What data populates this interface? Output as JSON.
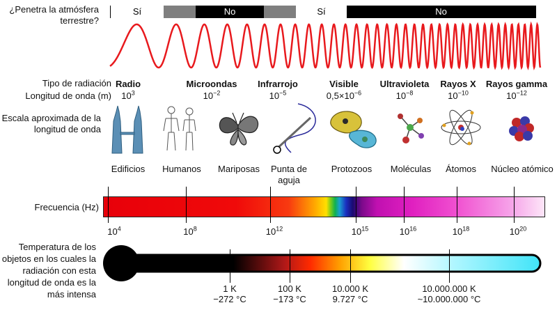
{
  "penetration": {
    "question": "¿Penetra la atmósfera terrestre?",
    "segments": [
      {
        "label": "Sí",
        "color": "#ffffff"
      },
      {
        "label": "",
        "color": "#7f7f7f"
      },
      {
        "label": "No",
        "color": "#000000"
      },
      {
        "label": "",
        "color": "#7f7f7f"
      },
      {
        "label": "Sí",
        "color": "#ffffff"
      },
      {
        "label": "No",
        "color": "#000000"
      }
    ]
  },
  "row_labels": {
    "type": "Tipo de radiación",
    "wavelength": "Longitud de onda (m)",
    "scale": "Escala aproximada de la longitud de onda",
    "frequency": "Frecuencia (Hz)",
    "temperature": "Temperatura de los objetos en los cuales la radiación con esta longitud de onda es la más intensa"
  },
  "columns": [
    {
      "name": "Radio",
      "wl_base": "10",
      "wl_exp": "3",
      "object": "Edificios",
      "icon": "towers-icon"
    },
    {
      "name": "Microondas",
      "wl_base": "10",
      "wl_exp": "−2",
      "object": "Humanos",
      "icon": "humans-icon"
    },
    {
      "name": "Infrarrojo",
      "wl_base": "10",
      "wl_exp": "−5",
      "object": "Mariposas",
      "icon": "butterfly-icon"
    },
    {
      "name": "Visible",
      "wl_base": "0,5×10",
      "wl_exp": "−6",
      "object": "Punta de aguja",
      "icon": "needle-icon"
    },
    {
      "name": "Ultravioleta",
      "wl_base": "10",
      "wl_exp": "−8",
      "object": "Protozoos",
      "icon": "protozoa-icon"
    },
    {
      "name": "Rayos X",
      "wl_base": "10",
      "wl_exp": "−10",
      "object": "Moléculas",
      "icon": "molecule-icon"
    },
    {
      "name": "Rayos gamma",
      "wl_base": "10",
      "wl_exp": "−12",
      "object": "Átomos",
      "icon": "atom-icon"
    },
    {
      "name": "",
      "wl_base": "",
      "wl_exp": "",
      "object": "Núcleo atómico",
      "icon": "nucleus-icon"
    }
  ],
  "frequency_ticks": [
    {
      "base": "10",
      "exp": "4"
    },
    {
      "base": "10",
      "exp": "8"
    },
    {
      "base": "10",
      "exp": "12"
    },
    {
      "base": "10",
      "exp": "15"
    },
    {
      "base": "10",
      "exp": "16"
    },
    {
      "base": "10",
      "exp": "18"
    },
    {
      "base": "10",
      "exp": "20"
    }
  ],
  "temperature_ticks": [
    {
      "kelvin": "1 K",
      "celsius": "−272 °C"
    },
    {
      "kelvin": "100 K",
      "celsius": "−173 °C"
    },
    {
      "kelvin": "10.000 K",
      "celsius": "9.727 °C"
    },
    {
      "kelvin": "10.000.000 K",
      "celsius": "~10.000.000 °C"
    }
  ],
  "colors": {
    "wave": "#e8191d",
    "black": "#000000",
    "gray": "#7f7f7f"
  }
}
